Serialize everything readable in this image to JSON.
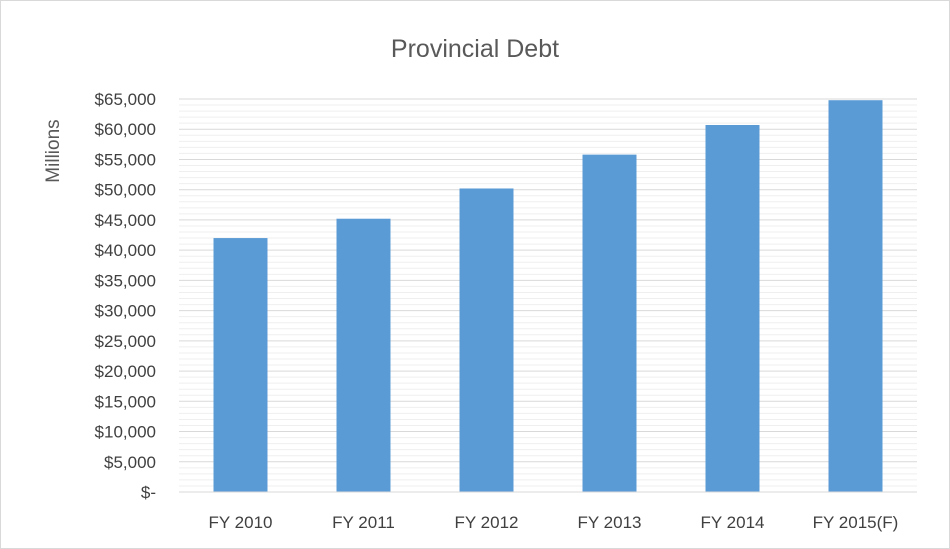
{
  "chart_data": {
    "type": "bar",
    "title": "Provincial Debt",
    "ylabel": "Millions",
    "xlabel": "",
    "categories": [
      "FY 2010",
      "FY 2011",
      "FY 2012",
      "FY 2013",
      "FY 2014",
      "FY 2015(F)"
    ],
    "values": [
      42000,
      45200,
      50200,
      55800,
      60700,
      64800
    ],
    "ylim": [
      0,
      65000
    ],
    "yticks": [
      0,
      5000,
      10000,
      15000,
      20000,
      25000,
      30000,
      35000,
      40000,
      45000,
      50000,
      55000,
      60000,
      65000
    ],
    "ytick_labels": [
      "$-",
      "$5,000",
      "$10,000",
      "$15,000",
      "$20,000",
      "$25,000",
      "$30,000",
      "$35,000",
      "$40,000",
      "$45,000",
      "$50,000",
      "$55,000",
      "$60,000",
      "$65,000"
    ],
    "grid": "horizontal",
    "bar_color": "#5b9bd5",
    "grid_color": "#d9d9d9"
  }
}
